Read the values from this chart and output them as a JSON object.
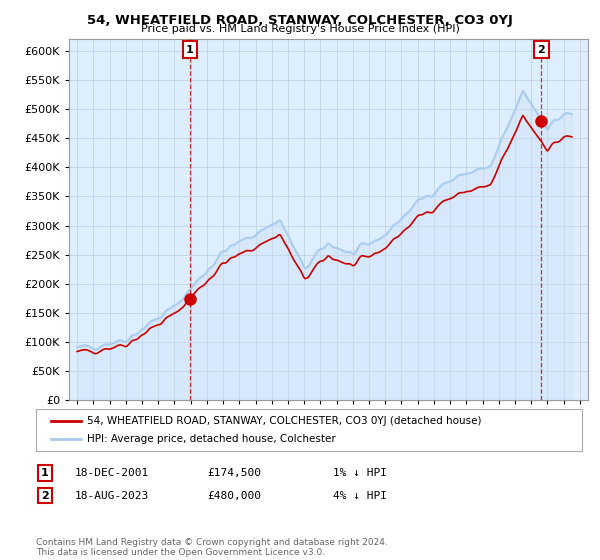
{
  "title": "54, WHEATFIELD ROAD, STANWAY, COLCHESTER, CO3 0YJ",
  "subtitle": "Price paid vs. HM Land Registry's House Price Index (HPI)",
  "legend_line1": "54, WHEATFIELD ROAD, STANWAY, COLCHESTER, CO3 0YJ (detached house)",
  "legend_line2": "HPI: Average price, detached house, Colchester",
  "annotation1_label": "1",
  "annotation1_date": "18-DEC-2001",
  "annotation1_price": "£174,500",
  "annotation1_hpi": "1% ↓ HPI",
  "annotation2_label": "2",
  "annotation2_date": "18-AUG-2023",
  "annotation2_price": "£480,000",
  "annotation2_hpi": "4% ↓ HPI",
  "footer": "Contains HM Land Registry data © Crown copyright and database right 2024.\nThis data is licensed under the Open Government Licence v3.0.",
  "sale1_year": 2001.96,
  "sale1_value": 174500,
  "sale2_year": 2023.63,
  "sale2_value": 480000,
  "hpi_color": "#aaccee",
  "price_color": "#cc0000",
  "plot_bg": "#ddeeff",
  "bg_color": "#ffffff",
  "grid_color": "#bbccdd",
  "ylim_min": 0,
  "ylim_max": 620000,
  "xlim_min": 1994.5,
  "xlim_max": 2026.5
}
